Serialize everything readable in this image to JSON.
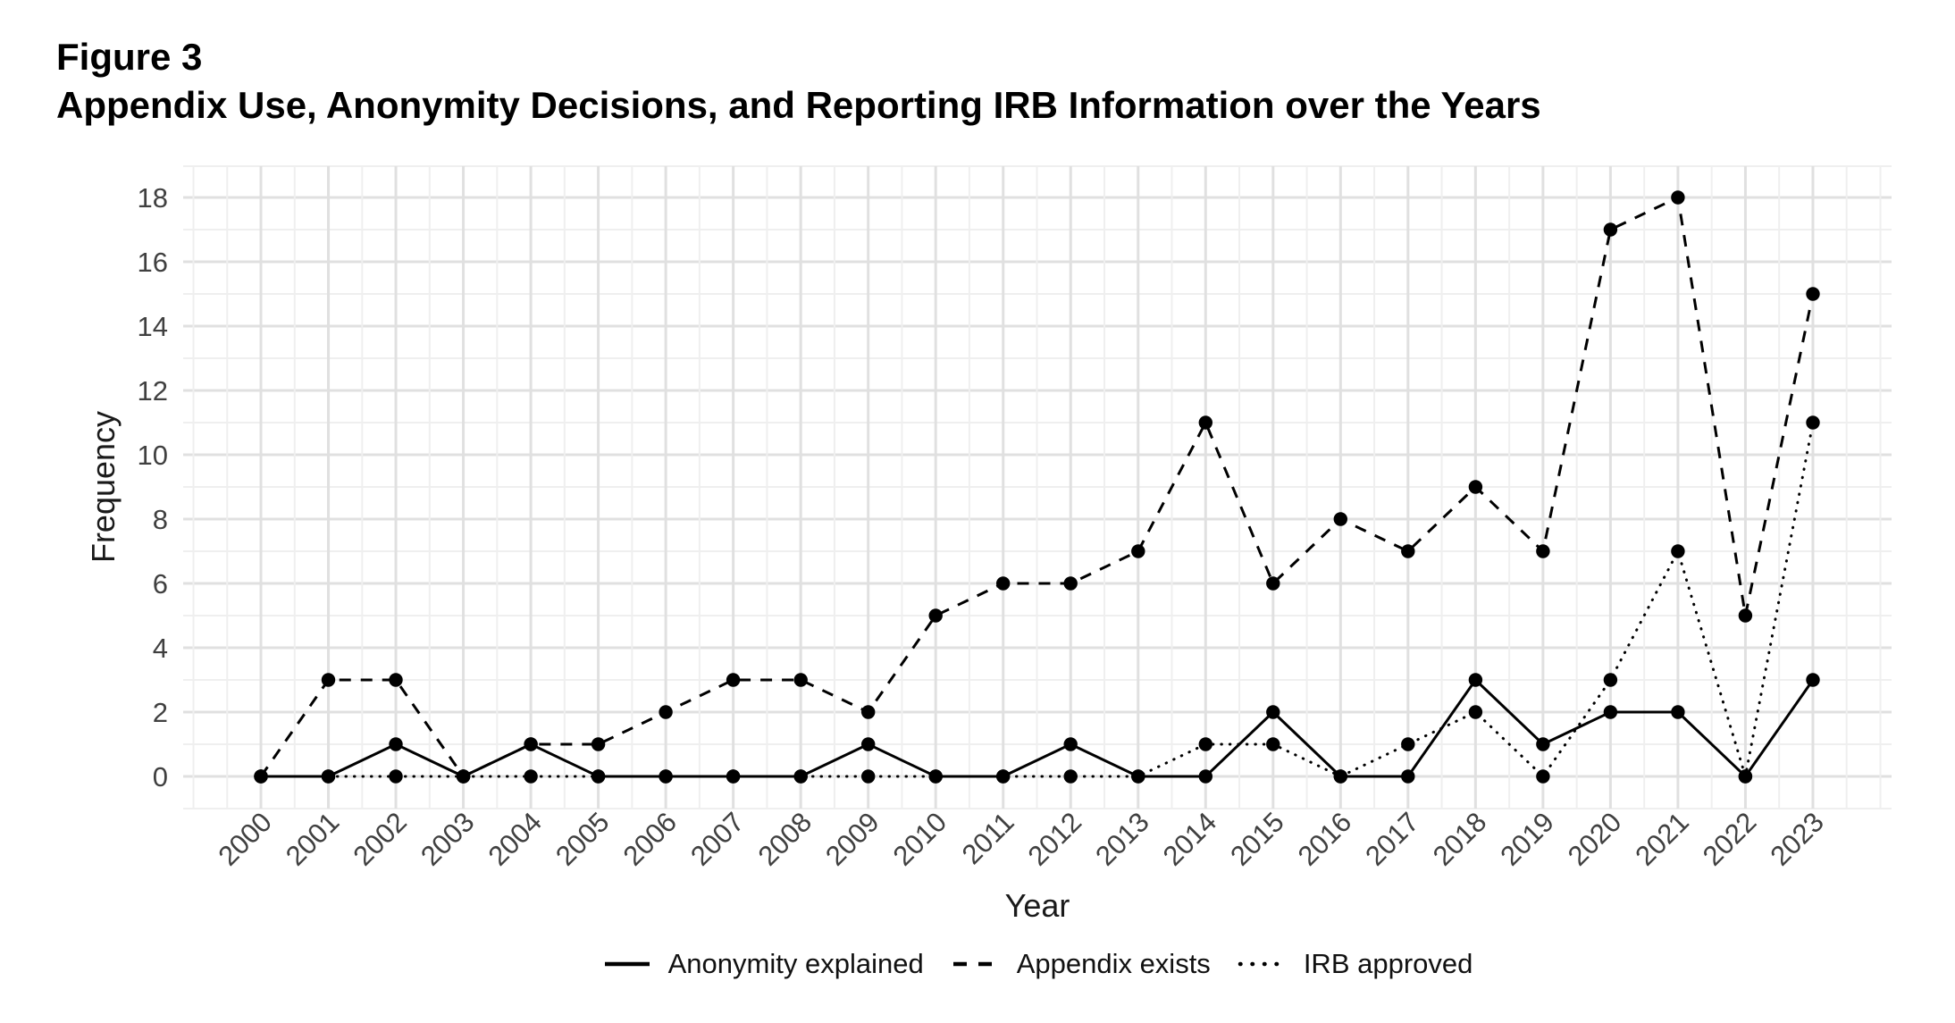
{
  "figure": {
    "label": "Figure 3",
    "title": "Appendix Use, Anonymity Decisions, and Reporting IRB Information over the Years"
  },
  "chart_data": {
    "type": "line",
    "title": "Appendix Use, Anonymity Decisions, and Reporting IRB Information over the Years",
    "xlabel": "Year",
    "ylabel": "Frequency",
    "x": [
      2000,
      2001,
      2002,
      2003,
      2004,
      2005,
      2006,
      2007,
      2008,
      2009,
      2010,
      2011,
      2012,
      2013,
      2014,
      2015,
      2016,
      2017,
      2018,
      2019,
      2020,
      2021,
      2022,
      2023
    ],
    "series": [
      {
        "name": "Anonymity explained",
        "linetype": "solid",
        "values": [
          0,
          0,
          1,
          0,
          1,
          0,
          0,
          0,
          0,
          1,
          0,
          0,
          1,
          0,
          0,
          2,
          0,
          0,
          3,
          1,
          2,
          2,
          0,
          3
        ]
      },
      {
        "name": "Appendix exists",
        "linetype": "dashed",
        "values": [
          0,
          3,
          3,
          0,
          1,
          1,
          2,
          3,
          3,
          2,
          5,
          6,
          6,
          7,
          11,
          6,
          8,
          7,
          9,
          7,
          17,
          18,
          5,
          15
        ]
      },
      {
        "name": "IRB approved",
        "linetype": "dotted",
        "values": [
          0,
          0,
          0,
          0,
          0,
          0,
          0,
          0,
          0,
          0,
          0,
          0,
          0,
          0,
          1,
          1,
          0,
          1,
          2,
          0,
          3,
          7,
          0,
          11
        ]
      }
    ],
    "ylim": [
      0,
      18
    ],
    "yticks": [
      0,
      2,
      4,
      6,
      8,
      10,
      12,
      14,
      16,
      18
    ],
    "grid": "major+minor",
    "legend_position": "bottom",
    "colors": {
      "line": "#000000",
      "point": "#000000",
      "grid_major": "#e0e0e0",
      "grid_minor": "#efefef",
      "axis_text": "#404040",
      "axis_title": "#1a1a1a",
      "background": "#ffffff",
      "title": "#000000"
    }
  }
}
